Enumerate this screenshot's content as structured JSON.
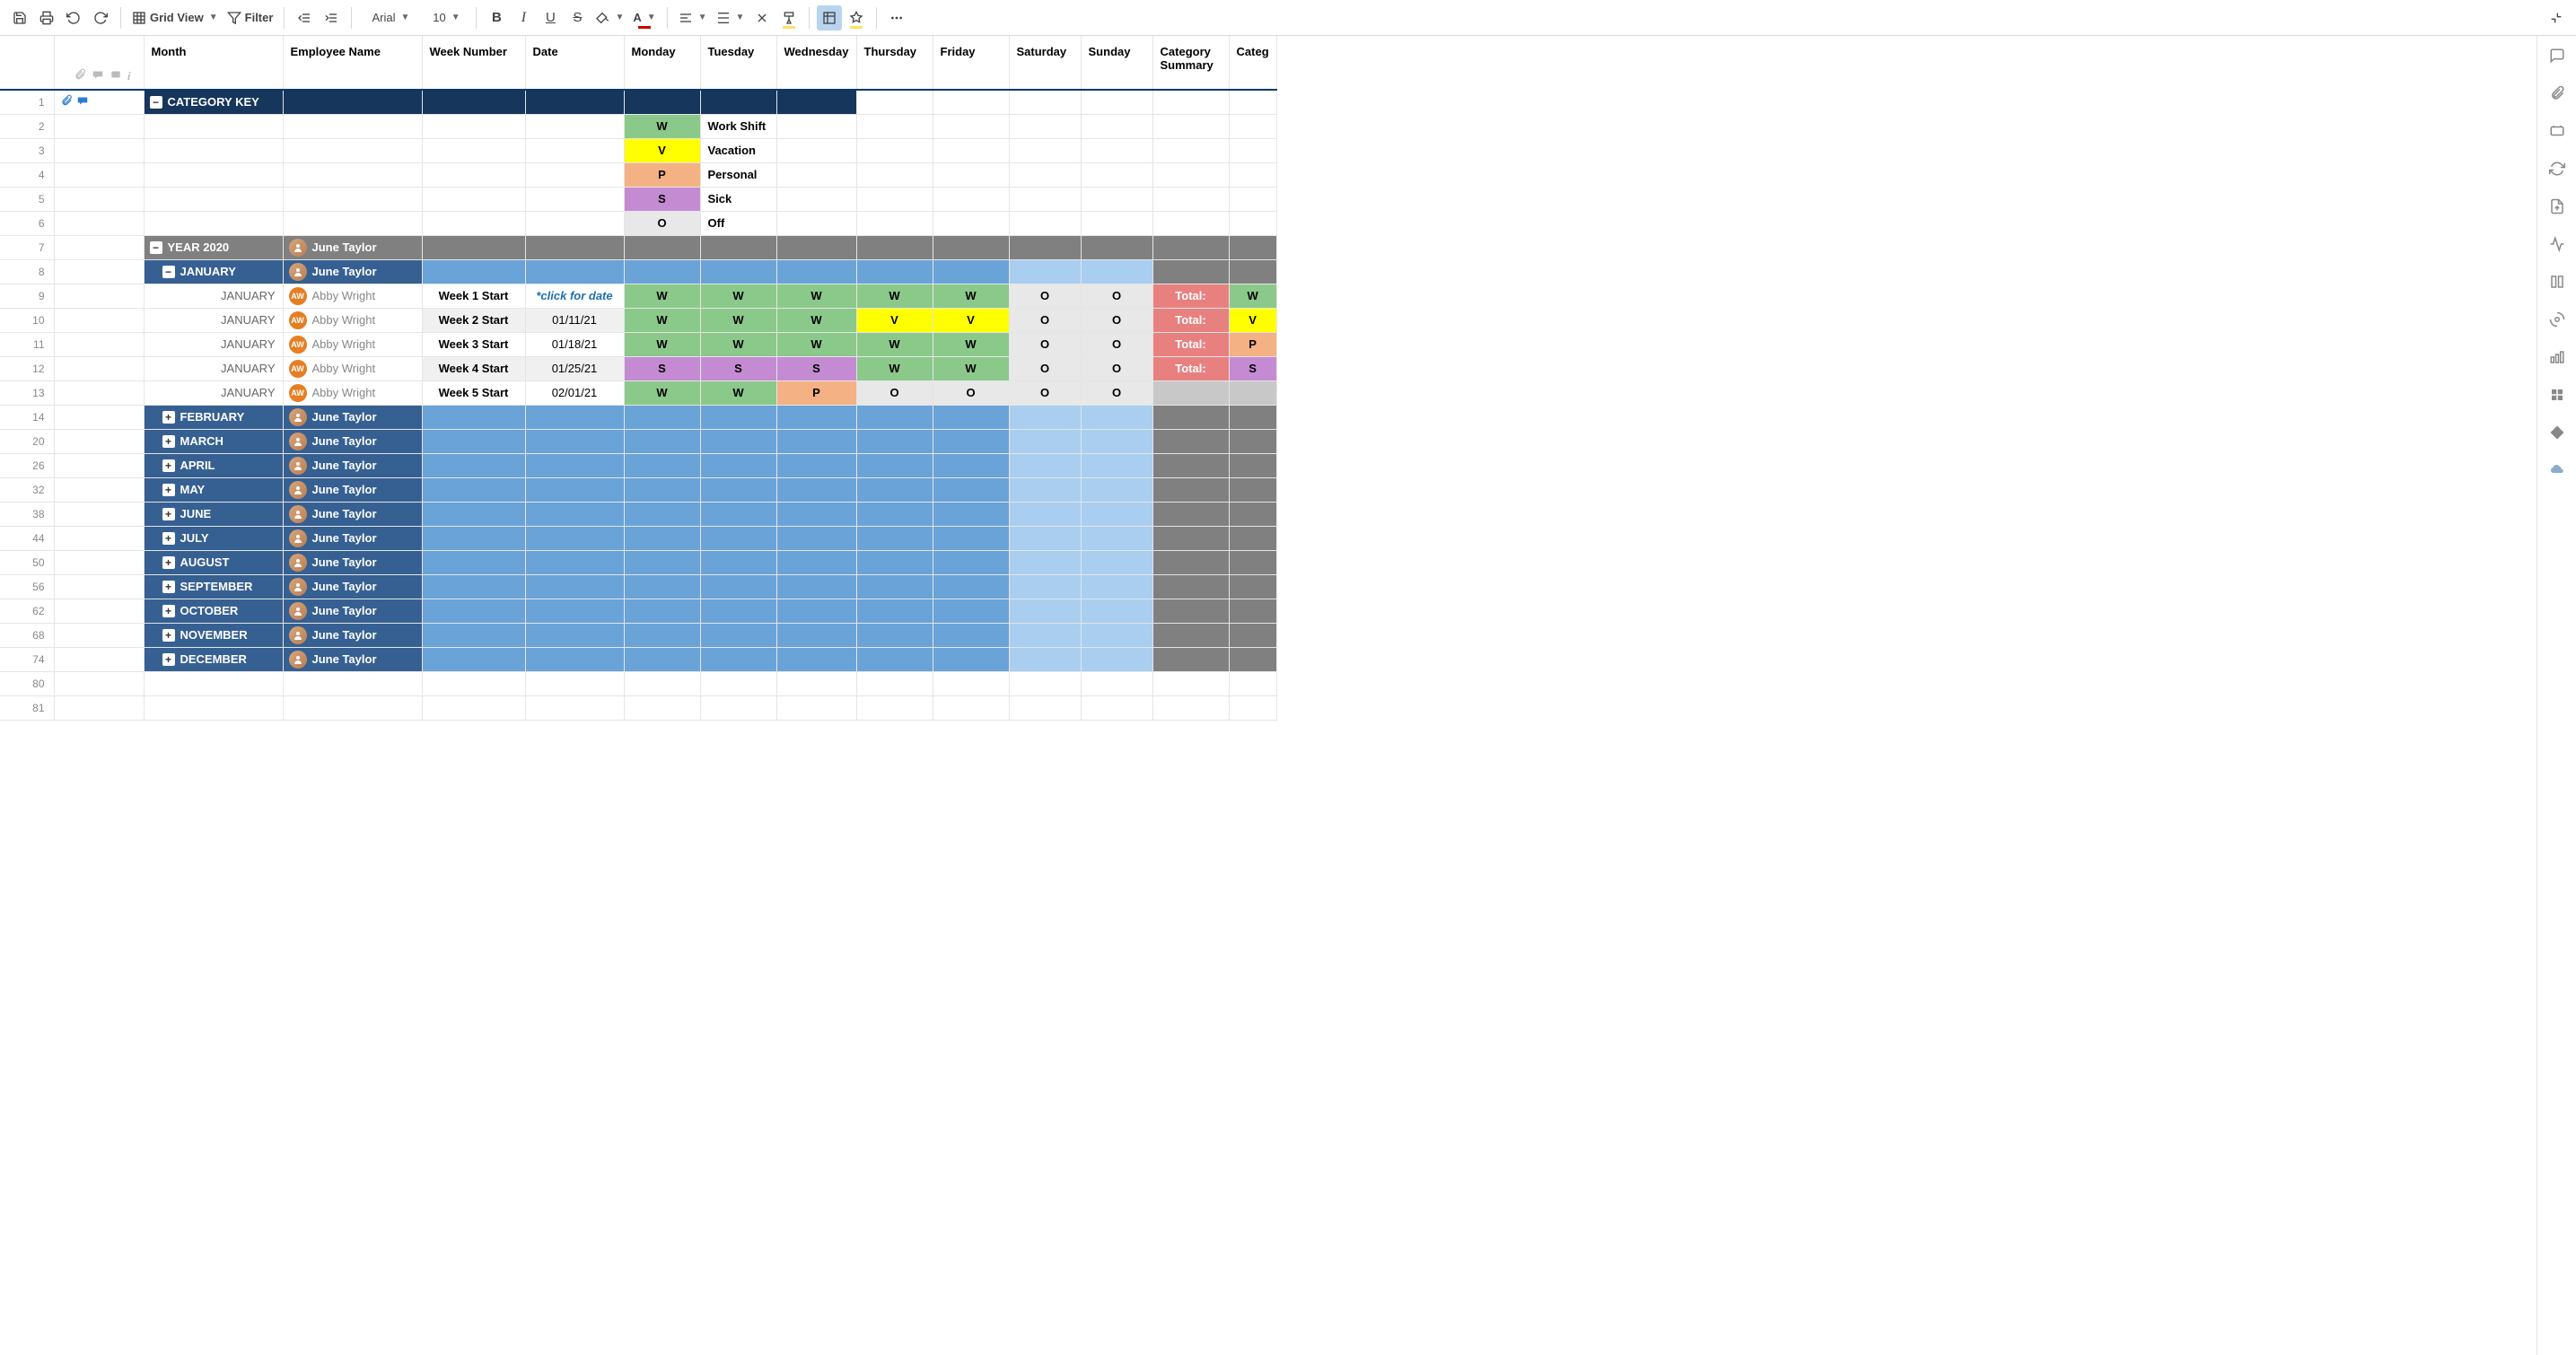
{
  "toolbar": {
    "grid_view_label": "Grid View",
    "filter_label": "Filter",
    "font_name": "Arial",
    "font_size": "10",
    "bold_letter": "B",
    "italic_letter": "I",
    "underline_letter": "U",
    "strike_letter": "S"
  },
  "columns": {
    "month": "Month",
    "employee": "Employee Name",
    "week": "Week Number",
    "date": "Date",
    "mon": "Monday",
    "tue": "Tuesday",
    "wed": "Wednesday",
    "thu": "Thursday",
    "fri": "Friday",
    "sat": "Saturday",
    "sun": "Sunday",
    "summary": "Category Summary",
    "catcode": "Categ"
  },
  "category_key": {
    "title": "CATEGORY KEY",
    "items": [
      {
        "code": "W",
        "label": "Work Shift",
        "color": "#8bc98b"
      },
      {
        "code": "V",
        "label": "Vacation",
        "color": "#ffff00"
      },
      {
        "code": "P",
        "label": "Personal",
        "color": "#f4b183"
      },
      {
        "code": "S",
        "label": "Sick",
        "color": "#c48bd3"
      },
      {
        "code": "O",
        "label": "Off",
        "color": "#e8e8e8"
      }
    ]
  },
  "year_header": {
    "label": "YEAR 2020",
    "employee": "June Taylor"
  },
  "january": {
    "label": "JANUARY",
    "employee": "June Taylor",
    "month_text": "JANUARY",
    "rows": [
      {
        "rownum": "9",
        "week": "Week 1 Start",
        "date": "*click for date",
        "date_is_hint": true,
        "emp": "Abby Wright",
        "days": [
          "W",
          "W",
          "W",
          "W",
          "W",
          "O",
          "O"
        ],
        "total": "Total:",
        "code": "W",
        "alt": false
      },
      {
        "rownum": "10",
        "week": "Week 2 Start",
        "date": "01/11/21",
        "date_is_hint": false,
        "emp": "Abby Wright",
        "days": [
          "W",
          "W",
          "W",
          "V",
          "V",
          "O",
          "O"
        ],
        "total": "Total:",
        "code": "V",
        "alt": true
      },
      {
        "rownum": "11",
        "week": "Week 3 Start",
        "date": "01/18/21",
        "date_is_hint": false,
        "emp": "Abby Wright",
        "days": [
          "W",
          "W",
          "W",
          "W",
          "W",
          "O",
          "O"
        ],
        "total": "Total:",
        "code": "P",
        "alt": false
      },
      {
        "rownum": "12",
        "week": "Week 4 Start",
        "date": "01/25/21",
        "date_is_hint": false,
        "emp": "Abby Wright",
        "days": [
          "S",
          "S",
          "S",
          "W",
          "W",
          "O",
          "O"
        ],
        "total": "Total:",
        "code": "S",
        "alt": true
      },
      {
        "rownum": "13",
        "week": "Week 5 Start",
        "date": "02/01/21",
        "date_is_hint": false,
        "emp": "Abby Wright",
        "days": [
          "W",
          "W",
          "P",
          "O",
          "O",
          "O",
          "O"
        ],
        "total": "",
        "code": "",
        "alt": false
      }
    ]
  },
  "month_headers": [
    {
      "rownum": "14",
      "label": "FEBRUARY",
      "employee": "June Taylor"
    },
    {
      "rownum": "20",
      "label": "MARCH",
      "employee": "June Taylor"
    },
    {
      "rownum": "26",
      "label": "APRIL",
      "employee": "June Taylor"
    },
    {
      "rownum": "32",
      "label": "MAY",
      "employee": "June Taylor"
    },
    {
      "rownum": "38",
      "label": "JUNE",
      "employee": "June Taylor"
    },
    {
      "rownum": "44",
      "label": "JULY",
      "employee": "June Taylor"
    },
    {
      "rownum": "50",
      "label": "AUGUST",
      "employee": "June Taylor"
    },
    {
      "rownum": "56",
      "label": "SEPTEMBER",
      "employee": "June Taylor"
    },
    {
      "rownum": "62",
      "label": "OCTOBER",
      "employee": "June Taylor"
    },
    {
      "rownum": "68",
      "label": "NOVEMBER",
      "employee": "June Taylor"
    },
    {
      "rownum": "74",
      "label": "DECEMBER",
      "employee": "June Taylor"
    }
  ],
  "empty_row_nums": [
    "80",
    "81"
  ],
  "row_nums": {
    "r1": "1",
    "r2": "2",
    "r3": "3",
    "r4": "4",
    "r5": "5",
    "r6": "6",
    "r7": "7",
    "r8": "8"
  },
  "colors": {
    "header_dark": "#16365c",
    "header_gray": "#808080",
    "header_blue": "#366092",
    "month_blue": "#6aa3d8",
    "month_lighter": "#a9cef0",
    "total_red": "#e88080",
    "border_accent": "#003a6b"
  }
}
